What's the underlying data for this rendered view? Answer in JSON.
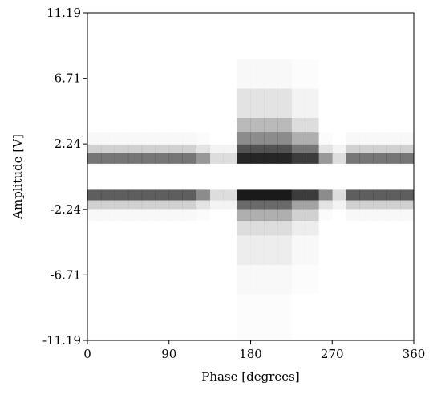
{
  "chart_data": {
    "type": "heatmap",
    "x_label": "Phase [degrees]",
    "y_label": "Amplitude [V]",
    "xlim": [
      0,
      360
    ],
    "ylim": [
      -11.19,
      11.19
    ],
    "xticks": [
      0,
      90,
      180,
      270,
      360
    ],
    "yticks": [
      -11.19,
      -6.71,
      -2.24,
      2.24,
      6.71,
      11.19
    ],
    "color": "#1a1a1a",
    "x_bins": [
      0,
      15,
      30,
      45,
      60,
      75,
      90,
      105,
      120,
      135,
      150,
      165,
      180,
      195,
      210,
      225,
      240,
      255,
      270,
      285,
      300,
      315,
      330,
      345,
      360
    ],
    "y_bins": [
      -11.19,
      -8,
      -6,
      -4,
      -3,
      -2.2,
      -1.6,
      -0.9,
      0.9,
      1.6,
      2.2,
      3,
      4,
      6,
      8,
      11.19
    ],
    "values": [
      [
        0,
        0,
        0,
        0,
        0,
        0,
        0,
        0,
        0,
        0,
        0,
        0.01,
        0.01,
        0.01,
        0.01,
        0,
        0,
        0,
        0,
        0,
        0,
        0,
        0,
        0
      ],
      [
        0,
        0,
        0,
        0,
        0,
        0,
        0,
        0,
        0,
        0,
        0,
        0.03,
        0.03,
        0.03,
        0.03,
        0.01,
        0.01,
        0,
        0,
        0,
        0,
        0,
        0,
        0
      ],
      [
        0,
        0,
        0,
        0,
        0,
        0,
        0,
        0,
        0,
        0,
        0,
        0.08,
        0.08,
        0.08,
        0.08,
        0.03,
        0.03,
        0,
        0,
        0,
        0,
        0,
        0,
        0
      ],
      [
        0,
        0,
        0,
        0,
        0,
        0,
        0,
        0,
        0,
        0,
        0,
        0.15,
        0.15,
        0.15,
        0.15,
        0.08,
        0.08,
        0,
        0,
        0,
        0,
        0,
        0,
        0
      ],
      [
        0.03,
        0.03,
        0.03,
        0.03,
        0.03,
        0.03,
        0.03,
        0.03,
        0.02,
        0,
        0,
        0.35,
        0.35,
        0.35,
        0.35,
        0.2,
        0.2,
        0.02,
        0,
        0.03,
        0.03,
        0.03,
        0.03,
        0.03
      ],
      [
        0.2,
        0.2,
        0.2,
        0.2,
        0.2,
        0.2,
        0.2,
        0.2,
        0.12,
        0.05,
        0.05,
        0.65,
        0.65,
        0.65,
        0.65,
        0.4,
        0.4,
        0.12,
        0.05,
        0.2,
        0.2,
        0.2,
        0.2,
        0.2
      ],
      [
        0.7,
        0.7,
        0.7,
        0.7,
        0.7,
        0.7,
        0.7,
        0.7,
        0.5,
        0.15,
        0.15,
        1,
        1,
        1,
        1,
        0.85,
        0.85,
        0.5,
        0.15,
        0.7,
        0.7,
        0.7,
        0.7,
        0.7
      ],
      [
        0,
        0,
        0,
        0,
        0,
        0,
        0,
        0,
        0,
        0,
        0,
        0,
        0,
        0,
        0,
        0,
        0,
        0,
        0,
        0,
        0,
        0,
        0,
        0
      ],
      [
        0.6,
        0.6,
        0.6,
        0.6,
        0.6,
        0.6,
        0.6,
        0.6,
        0.45,
        0.15,
        0.15,
        0.95,
        0.95,
        0.95,
        0.95,
        0.85,
        0.85,
        0.45,
        0.15,
        0.6,
        0.6,
        0.6,
        0.6,
        0.6
      ],
      [
        0.2,
        0.2,
        0.2,
        0.2,
        0.2,
        0.2,
        0.2,
        0.2,
        0.12,
        0.05,
        0.05,
        0.75,
        0.75,
        0.75,
        0.75,
        0.6,
        0.6,
        0.12,
        0.05,
        0.2,
        0.2,
        0.2,
        0.2,
        0.2
      ],
      [
        0.03,
        0.03,
        0.03,
        0.03,
        0.03,
        0.03,
        0.03,
        0.03,
        0.02,
        0,
        0,
        0.5,
        0.5,
        0.5,
        0.5,
        0.35,
        0.35,
        0.02,
        0,
        0.03,
        0.03,
        0.03,
        0.03,
        0.03
      ],
      [
        0,
        0,
        0,
        0,
        0,
        0,
        0,
        0,
        0,
        0,
        0,
        0.3,
        0.3,
        0.3,
        0.3,
        0.15,
        0.15,
        0,
        0,
        0,
        0,
        0,
        0,
        0
      ],
      [
        0,
        0,
        0,
        0,
        0,
        0,
        0,
        0,
        0,
        0,
        0,
        0.12,
        0.12,
        0.12,
        0.12,
        0.05,
        0.05,
        0,
        0,
        0,
        0,
        0,
        0,
        0
      ],
      [
        0,
        0,
        0,
        0,
        0,
        0,
        0,
        0,
        0,
        0,
        0,
        0.03,
        0.03,
        0.03,
        0.03,
        0.01,
        0.01,
        0,
        0,
        0,
        0,
        0,
        0,
        0
      ],
      [
        0,
        0,
        0,
        0,
        0,
        0,
        0,
        0,
        0,
        0,
        0,
        0,
        0,
        0,
        0,
        0,
        0,
        0,
        0,
        0,
        0,
        0,
        0,
        0
      ]
    ]
  }
}
